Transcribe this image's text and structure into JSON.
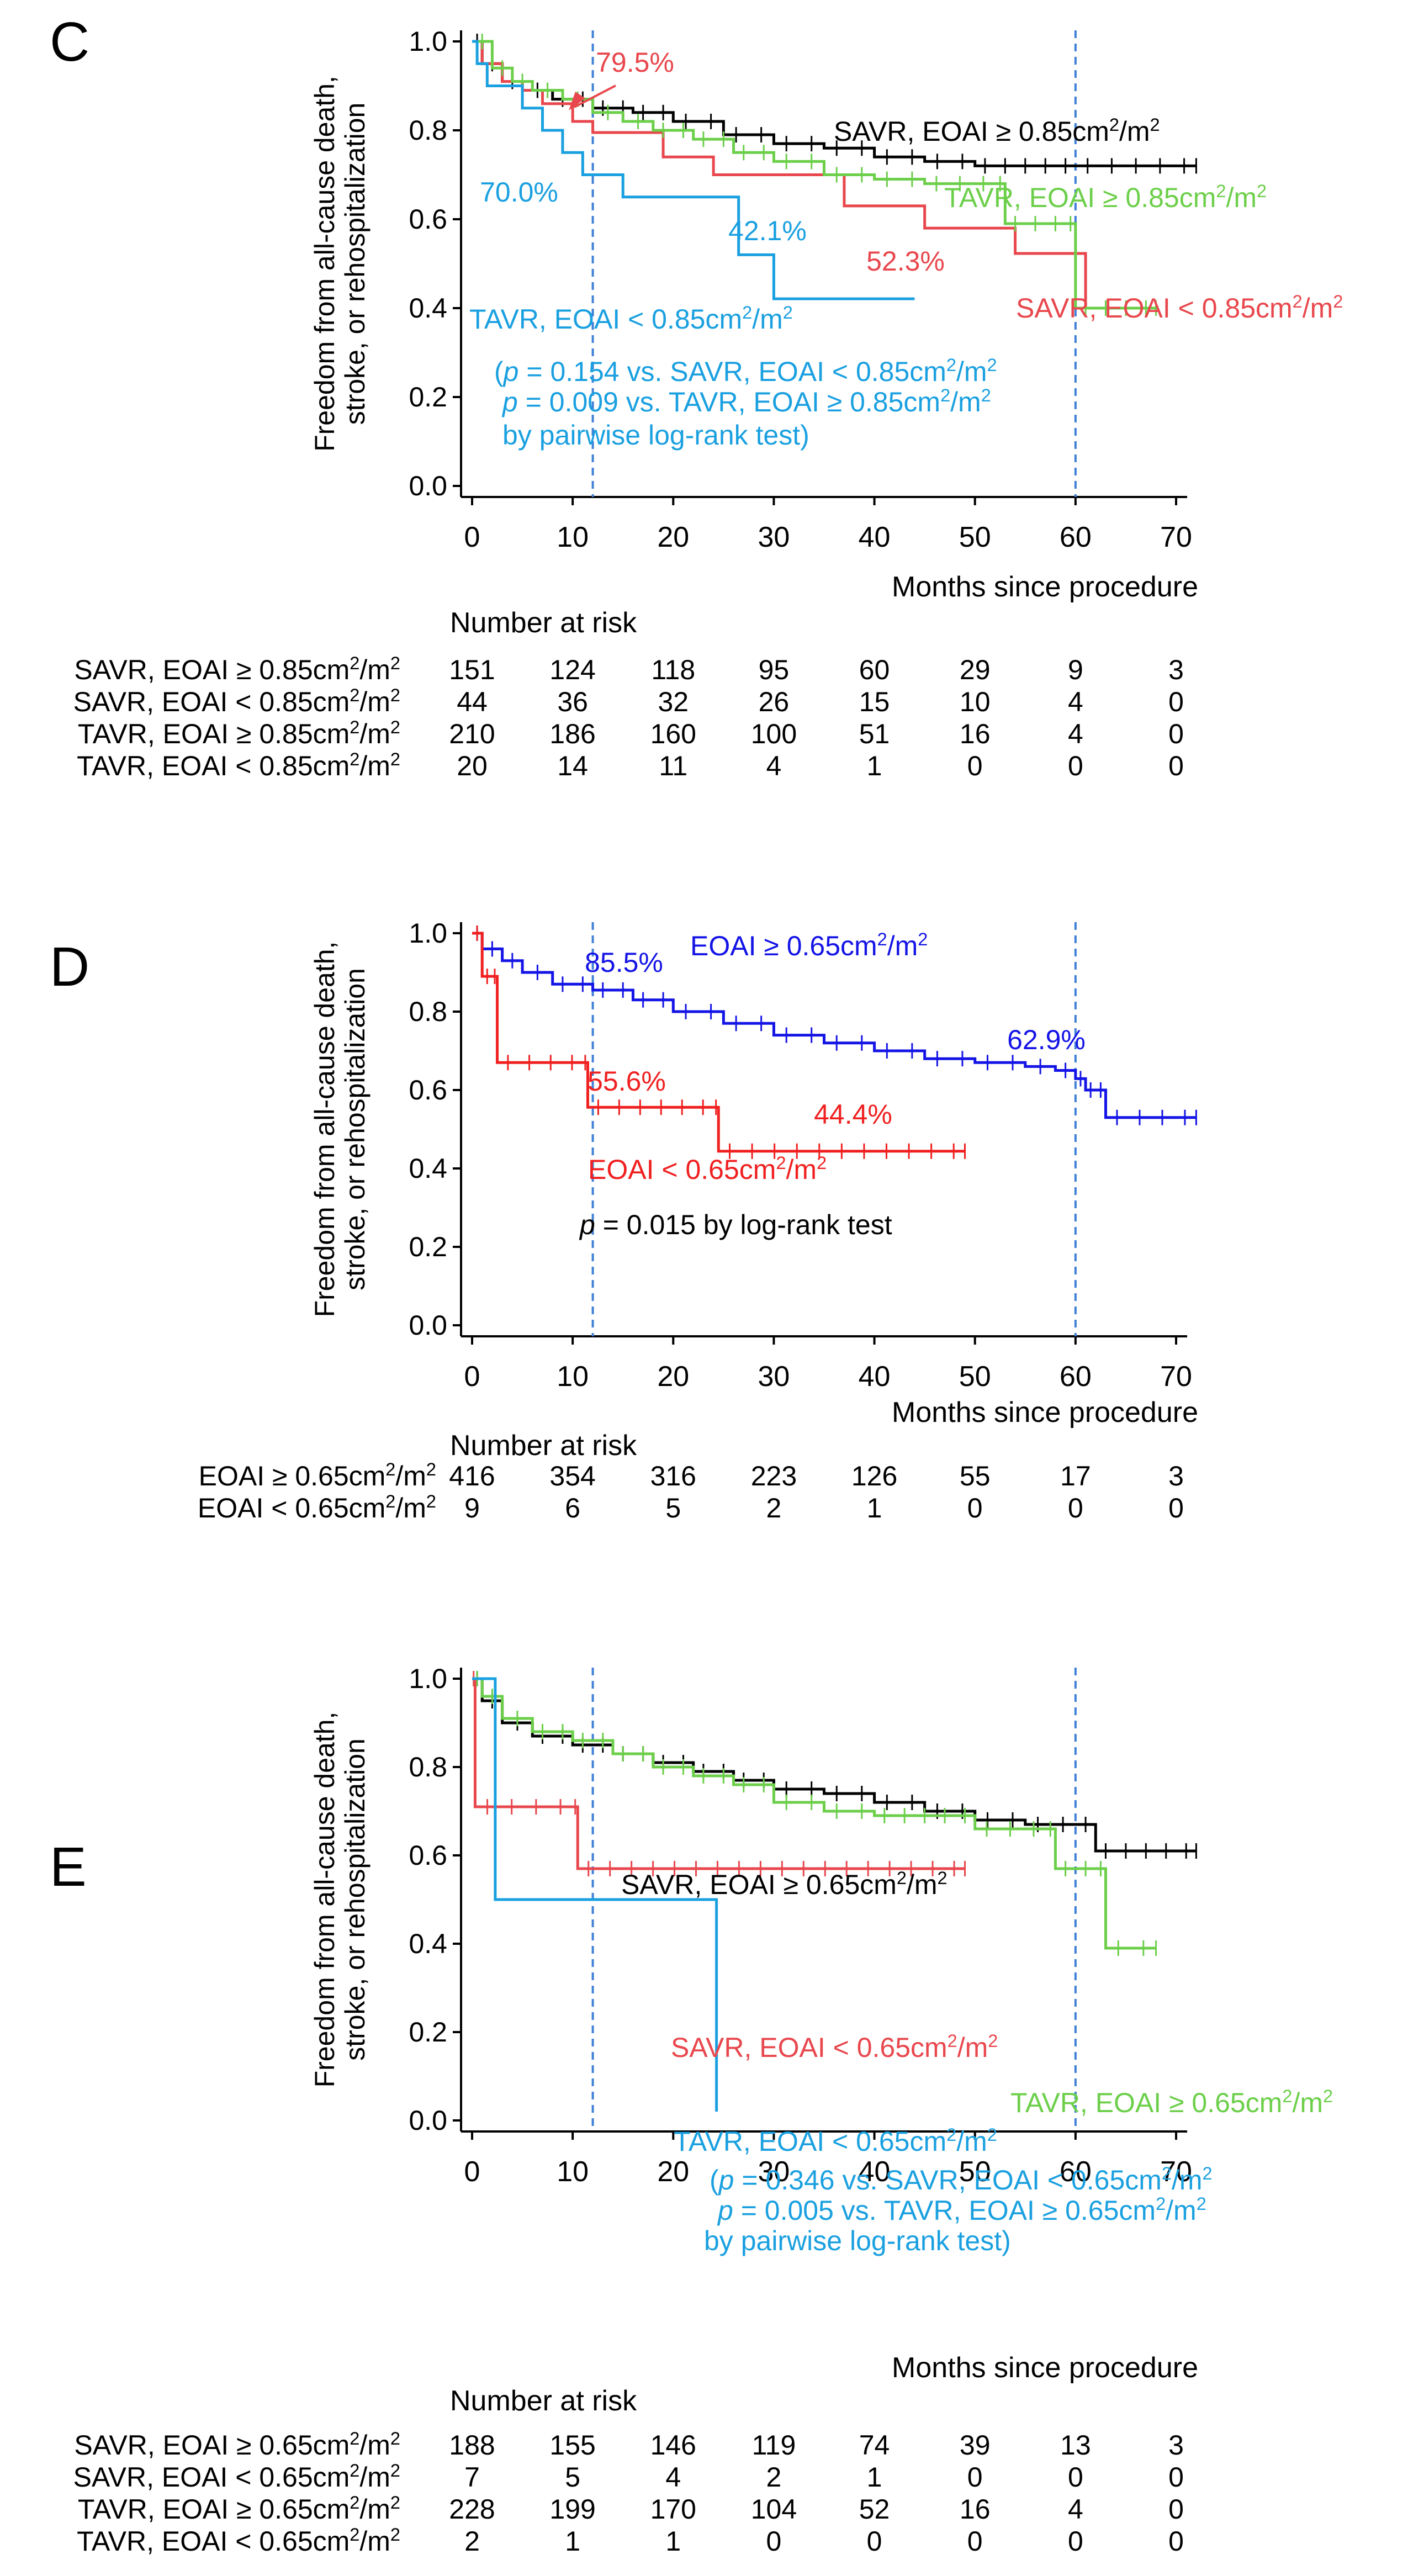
{
  "chart_data": [
    {
      "type": "line",
      "subtype": "kaplan-meier",
      "panel_label": "C",
      "ylabel_lines": [
        "Freedom from all-cause death,",
        "stroke, or rehospitalization"
      ],
      "xlabel": "Months since procedure",
      "xlim": [
        0,
        70
      ],
      "ylim": [
        0,
        1
      ],
      "x_ticks": [
        "0",
        "10",
        "20",
        "30",
        "40",
        "50",
        "60",
        "70"
      ],
      "y_ticks": [
        "0.0",
        "0.2",
        "0.4",
        "0.6",
        "0.8",
        "1.0"
      ],
      "reference_lines_x": [
        12,
        60
      ],
      "series": [
        {
          "name": "SAVR, EOAI ≥ 0.85cm²/m²",
          "color": "#000000",
          "points": [
            [
              0,
              1
            ],
            [
              1,
              0.95
            ],
            [
              3,
              0.91
            ],
            [
              5,
              0.89
            ],
            [
              8,
              0.87
            ],
            [
              12,
              0.85
            ],
            [
              16,
              0.84
            ],
            [
              20,
              0.82
            ],
            [
              25,
              0.79
            ],
            [
              30,
              0.77
            ],
            [
              35,
              0.76
            ],
            [
              40,
              0.74
            ],
            [
              45,
              0.73
            ],
            [
              50,
              0.72
            ],
            [
              60,
              0.72
            ],
            [
              72,
              0.72
            ]
          ]
        },
        {
          "name": "SAVR, EOAI < 0.85cm²/m²",
          "color": "#e8474d",
          "points": [
            [
              0,
              1
            ],
            [
              1,
              0.95
            ],
            [
              3,
              0.91
            ],
            [
              5,
              0.89
            ],
            [
              7,
              0.86
            ],
            [
              10,
              0.82
            ],
            [
              12,
              0.795
            ],
            [
              18,
              0.795
            ],
            [
              19,
              0.74
            ],
            [
              23,
              0.74
            ],
            [
              24,
              0.7
            ],
            [
              36,
              0.7
            ],
            [
              37,
              0.63
            ],
            [
              44,
              0.63
            ],
            [
              45,
              0.58
            ],
            [
              53,
              0.58
            ],
            [
              54,
              0.523
            ],
            [
              60,
              0.523
            ],
            [
              61,
              0.4
            ],
            [
              68,
              0.4
            ]
          ]
        },
        {
          "name": "TAVR, EOAI ≥ 0.85cm²/m²",
          "color": "#6ccf4a",
          "points": [
            [
              0,
              1
            ],
            [
              2,
              0.94
            ],
            [
              4,
              0.91
            ],
            [
              6,
              0.89
            ],
            [
              9,
              0.87
            ],
            [
              12,
              0.84
            ],
            [
              15,
              0.82
            ],
            [
              18,
              0.8
            ],
            [
              22,
              0.78
            ],
            [
              26,
              0.75
            ],
            [
              30,
              0.73
            ],
            [
              35,
              0.7
            ],
            [
              40,
              0.69
            ],
            [
              45,
              0.68
            ],
            [
              52,
              0.68
            ],
            [
              53,
              0.59
            ],
            [
              59,
              0.59
            ],
            [
              60,
              0.4
            ],
            [
              68,
              0.4
            ]
          ]
        },
        {
          "name": "TAVR, EOAI < 0.85cm²/m²",
          "color": "#1aa0e0",
          "points": [
            [
              0,
              1
            ],
            [
              0.5,
              0.95
            ],
            [
              1.5,
              0.9
            ],
            [
              5,
              0.85
            ],
            [
              7,
              0.8
            ],
            [
              9,
              0.75
            ],
            [
              11,
              0.7
            ],
            [
              14,
              0.7
            ],
            [
              15,
              0.65
            ],
            [
              26,
              0.65
            ],
            [
              26.5,
              0.52
            ],
            [
              29.5,
              0.52
            ],
            [
              30,
              0.421
            ],
            [
              44,
              0.421
            ]
          ]
        }
      ],
      "censor_series": [
        0,
        2
      ],
      "annotations": [
        {
          "text": "79.5%",
          "color": "#e8474d"
        },
        {
          "text": "70.0%",
          "color": "#1aa0e0"
        },
        {
          "text": "42.1%",
          "color": "#1aa0e0"
        },
        {
          "text": "52.3%",
          "color": "#e8474d"
        },
        {
          "text": "SAVR, EOAI ≥ 0.85cm²/m²",
          "color": "#000000"
        },
        {
          "text": "TAVR, EOAI ≥ 0.85cm²/m²",
          "color": "#6ccf4a"
        },
        {
          "text": "SAVR, EOAI < 0.85cm²/m²",
          "color": "#e8474d"
        },
        {
          "text": "TAVR, EOAI < 0.85cm²/m²",
          "color": "#1aa0e0"
        }
      ],
      "stats_lines": [
        "(p = 0.154 vs. SAVR, EOAI < 0.85cm²/m²",
        "p = 0.009 vs. TAVR, EOAI ≥ 0.85cm²/m²",
        "by pairwise log-rank test)"
      ],
      "stats_color": "#1aa0e0",
      "risk_title": "Number at risk",
      "risk_table": [
        {
          "label": "SAVR, EOAI ≥ 0.85cm²/m²",
          "values": [
            "151",
            "124",
            "118",
            "95",
            "60",
            "29",
            "9",
            "3"
          ]
        },
        {
          "label": "SAVR, EOAI < 0.85cm²/m²",
          "values": [
            "44",
            "36",
            "32",
            "26",
            "15",
            "10",
            "4",
            "0"
          ]
        },
        {
          "label": "TAVR, EOAI ≥ 0.85cm²/m²",
          "values": [
            "210",
            "186",
            "160",
            "100",
            "51",
            "16",
            "4",
            "0"
          ]
        },
        {
          "label": "TAVR, EOAI < 0.85cm²/m²",
          "values": [
            "20",
            "14",
            "11",
            "4",
            "1",
            "0",
            "0",
            "0"
          ]
        }
      ]
    },
    {
      "type": "line",
      "subtype": "kaplan-meier",
      "panel_label": "D",
      "ylabel_lines": [
        "Freedom from all-cause death,",
        "stroke, or rehospitalization"
      ],
      "xlabel": "Months since procedure",
      "xlim": [
        0,
        70
      ],
      "ylim": [
        0,
        1
      ],
      "x_ticks": [
        "0",
        "10",
        "20",
        "30",
        "40",
        "50",
        "60",
        "70"
      ],
      "y_ticks": [
        "0.0",
        "0.2",
        "0.4",
        "0.6",
        "0.8",
        "1.0"
      ],
      "reference_lines_x": [
        12,
        60
      ],
      "series": [
        {
          "name": "EOAI ≥ 0.65cm²/m²",
          "color": "#1414e6",
          "points": [
            [
              0,
              1
            ],
            [
              1,
              0.96
            ],
            [
              3,
              0.93
            ],
            [
              5,
              0.9
            ],
            [
              8,
              0.87
            ],
            [
              12,
              0.855
            ],
            [
              16,
              0.83
            ],
            [
              20,
              0.8
            ],
            [
              25,
              0.77
            ],
            [
              30,
              0.74
            ],
            [
              35,
              0.72
            ],
            [
              40,
              0.7
            ],
            [
              45,
              0.68
            ],
            [
              50,
              0.67
            ],
            [
              55,
              0.66
            ],
            [
              58,
              0.65
            ],
            [
              60,
              0.629
            ],
            [
              61,
              0.6
            ],
            [
              62,
              0.6
            ],
            [
              63,
              0.53
            ],
            [
              72,
              0.53
            ]
          ]
        },
        {
          "name": "EOAI < 0.65cm²/m²",
          "color": "#f02020",
          "points": [
            [
              0,
              1
            ],
            [
              1,
              0.89
            ],
            [
              2,
              0.89
            ],
            [
              2.5,
              0.67
            ],
            [
              11,
              0.67
            ],
            [
              11.5,
              0.556
            ],
            [
              24,
              0.556
            ],
            [
              24.5,
              0.444
            ],
            [
              49,
              0.444
            ]
          ]
        }
      ],
      "censor_series": [
        0,
        1
      ],
      "annotations": [
        {
          "text": "85.5%",
          "color": "#1414e6"
        },
        {
          "text": "EOAI ≥ 0.65cm²/m²",
          "color": "#1414e6"
        },
        {
          "text": "62.9%",
          "color": "#1414e6"
        },
        {
          "text": "55.6%",
          "color": "#f02020"
        },
        {
          "text": "44.4%",
          "color": "#f02020"
        },
        {
          "text": "EOAI < 0.65cm²/m²",
          "color": "#f02020"
        }
      ],
      "stats_lines": [
        "p = 0.015 by log-rank test"
      ],
      "stats_color": "#000000",
      "risk_title": "Number at risk",
      "risk_table": [
        {
          "label": "EOAI ≥ 0.65cm²/m²",
          "values": [
            "416",
            "354",
            "316",
            "223",
            "126",
            "55",
            "17",
            "3"
          ]
        },
        {
          "label": "EOAI < 0.65cm²/m²",
          "values": [
            "9",
            "6",
            "5",
            "2",
            "1",
            "0",
            "0",
            "0"
          ]
        }
      ]
    },
    {
      "type": "line",
      "subtype": "kaplan-meier",
      "panel_label": "E",
      "ylabel_lines": [
        "Freedom from all-cause death,",
        "stroke, or rehospitalization"
      ],
      "xlabel": "Months since procedure",
      "xlim": [
        0,
        70
      ],
      "ylim": [
        0,
        1
      ],
      "x_ticks": [
        "0",
        "10",
        "20",
        "30",
        "40",
        "50",
        "60",
        "70"
      ],
      "y_ticks": [
        "0.0",
        "0.2",
        "0.4",
        "0.6",
        "0.8",
        "1.0"
      ],
      "reference_lines_x": [
        12,
        60
      ],
      "series": [
        {
          "name": "SAVR, EOAI ≥ 0.65cm²/m²",
          "color": "#000000",
          "points": [
            [
              0,
              1
            ],
            [
              1,
              0.95
            ],
            [
              3,
              0.9
            ],
            [
              6,
              0.87
            ],
            [
              10,
              0.85
            ],
            [
              14,
              0.83
            ],
            [
              18,
              0.81
            ],
            [
              22,
              0.79
            ],
            [
              26,
              0.77
            ],
            [
              30,
              0.75
            ],
            [
              35,
              0.74
            ],
            [
              40,
              0.72
            ],
            [
              45,
              0.7
            ],
            [
              50,
              0.68
            ],
            [
              55,
              0.67
            ],
            [
              60,
              0.67
            ],
            [
              62,
              0.61
            ],
            [
              72,
              0.61
            ]
          ]
        },
        {
          "name": "SAVR, EOAI < 0.65cm²/m²",
          "color": "#e8474d",
          "points": [
            [
              0,
              1
            ],
            [
              0.3,
              0.71
            ],
            [
              10,
              0.71
            ],
            [
              10.5,
              0.57
            ],
            [
              49,
              0.57
            ]
          ]
        },
        {
          "name": "TAVR, EOAI ≥ 0.65cm²/m²",
          "color": "#6ccf4a",
          "points": [
            [
              0,
              1
            ],
            [
              1,
              0.96
            ],
            [
              3,
              0.91
            ],
            [
              6,
              0.88
            ],
            [
              10,
              0.86
            ],
            [
              14,
              0.83
            ],
            [
              18,
              0.8
            ],
            [
              22,
              0.78
            ],
            [
              26,
              0.76
            ],
            [
              30,
              0.72
            ],
            [
              35,
              0.7
            ],
            [
              40,
              0.69
            ],
            [
              50,
              0.66
            ],
            [
              57,
              0.66
            ],
            [
              58,
              0.57
            ],
            [
              62,
              0.57
            ],
            [
              63,
              0.39
            ],
            [
              68,
              0.39
            ]
          ]
        },
        {
          "name": "TAVR, EOAI < 0.65cm²/m²",
          "color": "#1aa0e0",
          "points": [
            [
              0,
              1
            ],
            [
              2,
              1
            ],
            [
              2.3,
              0.5
            ],
            [
              24,
              0.5
            ],
            [
              24.3,
              0.02
            ]
          ]
        }
      ],
      "censor_series": [
        0,
        1,
        2
      ],
      "annotations": [
        {
          "text": "SAVR, EOAI ≥ 0.65cm²/m²",
          "color": "#000000"
        },
        {
          "text": "SAVR, EOAI < 0.65cm²/m²",
          "color": "#e8474d"
        },
        {
          "text": "TAVR, EOAI ≥ 0.65cm²/m²",
          "color": "#6ccf4a"
        },
        {
          "text": "TAVR, EOAI < 0.65cm²/m²",
          "color": "#1aa0e0"
        }
      ],
      "stats_lines": [
        "(p = 0.346 vs. SAVR, EOAI < 0.65cm²/m²",
        "p = 0.005 vs. TAVR, EOAI ≥ 0.65cm²/m²",
        "by pairwise log-rank test)"
      ],
      "stats_color": "#1aa0e0",
      "risk_title": "Number at risk",
      "risk_table": [
        {
          "label": "SAVR, EOAI ≥ 0.65cm²/m²",
          "values": [
            "188",
            "155",
            "146",
            "119",
            "74",
            "39",
            "13",
            "3"
          ]
        },
        {
          "label": "SAVR, EOAI < 0.65cm²/m²",
          "values": [
            "7",
            "5",
            "4",
            "2",
            "1",
            "0",
            "0",
            "0"
          ]
        },
        {
          "label": "TAVR, EOAI ≥ 0.65cm²/m²",
          "values": [
            "228",
            "199",
            "170",
            "104",
            "52",
            "16",
            "4",
            "0"
          ]
        },
        {
          "label": "TAVR, EOAI < 0.65cm²/m²",
          "values": [
            "2",
            "1",
            "1",
            "0",
            "0",
            "0",
            "0",
            "0"
          ]
        }
      ]
    }
  ]
}
